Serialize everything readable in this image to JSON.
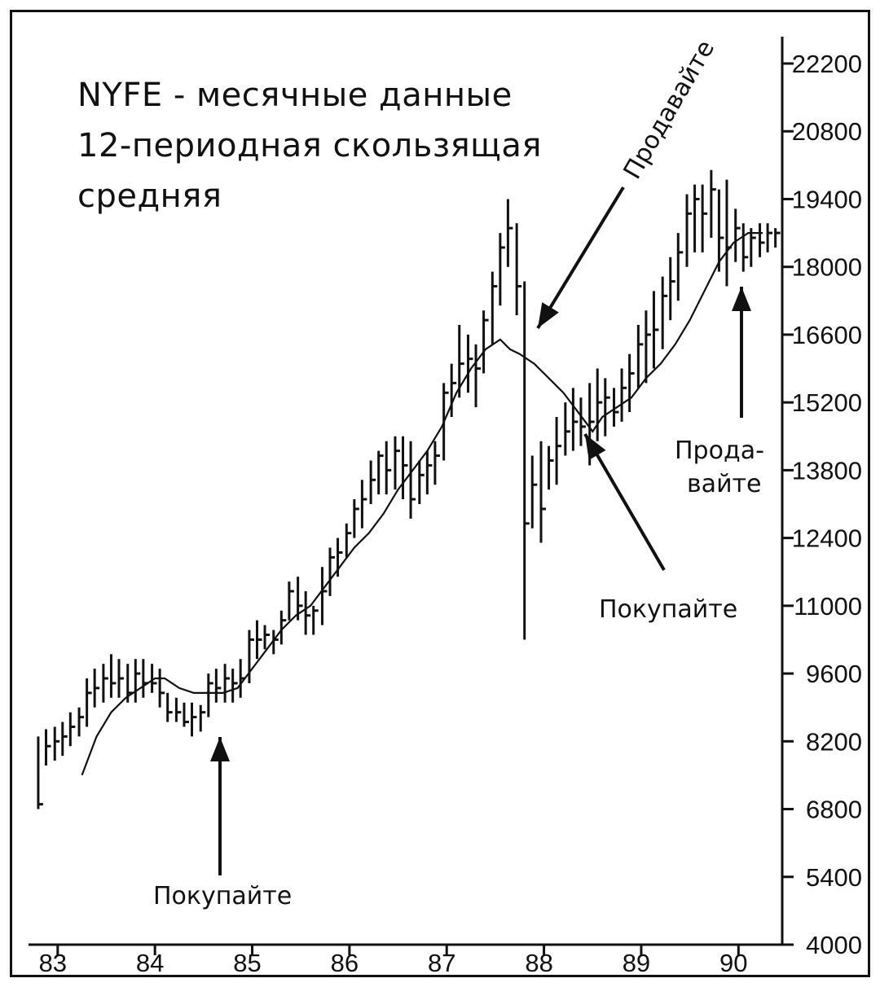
{
  "chart_data": {
    "type": "line",
    "title_lines": [
      "NYFE - месячные данные",
      "12-периодная скользящая",
      "средняя"
    ],
    "x_tick_labels": [
      "83",
      "84",
      "85",
      "86",
      "87",
      "88",
      "89",
      "90"
    ],
    "y_tick_labels": [
      "22200",
      "20800",
      "19400",
      "18000",
      "16600",
      "15200",
      "13800",
      "12400",
      "11000",
      "9600",
      "8200",
      "6800",
      "5400",
      "4000"
    ],
    "ylim": [
      4000,
      22200
    ],
    "xlim": [
      1982.7,
      1990.45
    ],
    "bars_note": "monthly price range bars",
    "series": [
      {
        "style": "bars",
        "x": [
          1982.8,
          1982.88,
          1982.97,
          1983.05,
          1983.13,
          1983.22,
          1983.3,
          1983.38,
          1983.47,
          1983.55,
          1983.63,
          1983.72,
          1983.8,
          1983.88,
          1983.97,
          1984.05,
          1984.13,
          1984.22,
          1984.3,
          1984.38,
          1984.47,
          1984.55,
          1984.63,
          1984.72,
          1984.8,
          1984.88,
          1984.97,
          1985.05,
          1985.13,
          1985.22,
          1985.3,
          1985.38,
          1985.47,
          1985.55,
          1985.63,
          1985.72,
          1985.8,
          1985.88,
          1985.97,
          1986.05,
          1986.13,
          1986.22,
          1986.3,
          1986.38,
          1986.47,
          1986.55,
          1986.63,
          1986.72,
          1986.8,
          1986.88,
          1986.97,
          1987.05,
          1987.13,
          1987.22,
          1987.3,
          1987.38,
          1987.47,
          1987.55,
          1987.63,
          1987.72,
          1987.8,
          1987.88,
          1987.97,
          1988.05,
          1988.13,
          1988.22,
          1988.3,
          1988.38,
          1988.47,
          1988.55,
          1988.63,
          1988.72,
          1988.8,
          1988.88,
          1988.97,
          1989.05,
          1989.13,
          1989.22,
          1989.3,
          1989.38,
          1989.47,
          1989.55,
          1989.63,
          1989.72,
          1989.8,
          1989.88,
          1989.97,
          1990.05,
          1990.13,
          1990.22,
          1990.3,
          1990.38
        ],
        "high": [
          8300,
          8450,
          8500,
          8600,
          8800,
          8900,
          9500,
          9700,
          9800,
          10000,
          9900,
          9800,
          9900,
          9900,
          9800,
          9700,
          9200,
          9100,
          9000,
          9000,
          8950,
          9600,
          9700,
          9800,
          9700,
          9900,
          10500,
          10700,
          10600,
          10500,
          10900,
          11500,
          11600,
          11300,
          11000,
          11800,
          12200,
          12400,
          12700,
          13200,
          13600,
          14000,
          14200,
          14400,
          14500,
          14500,
          14400,
          14000,
          14200,
          14400,
          15600,
          16000,
          16800,
          16600,
          16400,
          17100,
          17900,
          18700,
          19400,
          18900,
          17700,
          14100,
          14400,
          14300,
          14900,
          15200,
          15500,
          15300,
          15600,
          15900,
          15700,
          15500,
          15900,
          16200,
          16800,
          17100,
          17500,
          17800,
          18200,
          18700,
          19500,
          19700,
          19700,
          20000,
          19600,
          19800,
          19200,
          18900,
          18800,
          18900,
          18900,
          18800
        ],
        "low": [
          6800,
          7700,
          7800,
          7900,
          8100,
          8300,
          8500,
          8900,
          9000,
          9100,
          9100,
          9000,
          9000,
          9100,
          9200,
          8900,
          8600,
          8600,
          8500,
          8300,
          8400,
          8700,
          9000,
          9000,
          9000,
          9100,
          9400,
          9900,
          10100,
          10000,
          10200,
          10700,
          10700,
          10400,
          10400,
          10600,
          11200,
          11600,
          12000,
          12400,
          12600,
          13100,
          13300,
          13300,
          13400,
          13200,
          12800,
          13100,
          13300,
          13500,
          14000,
          14900,
          15300,
          15400,
          15100,
          15800,
          16400,
          17200,
          18000,
          17000,
          10300,
          12600,
          12300,
          13400,
          13500,
          14100,
          14200,
          14300,
          13900,
          14400,
          14500,
          14700,
          14800,
          15000,
          15500,
          15600,
          15900,
          16300,
          16900,
          17300,
          18000,
          18300,
          18300,
          18600,
          17900,
          17600,
          18100,
          17900,
          18000,
          18200,
          18300,
          18400
        ],
        "close": [
          6900,
          8100,
          8200,
          8300,
          8500,
          8700,
          9200,
          9300,
          9500,
          9400,
          9500,
          9200,
          9600,
          9400,
          9400,
          9200,
          8800,
          8800,
          8600,
          8700,
          8800,
          9400,
          9300,
          9500,
          9400,
          9500,
          10300,
          10300,
          10400,
          10300,
          10700,
          11300,
          11000,
          10800,
          10900,
          11300,
          12000,
          12100,
          12500,
          13000,
          13200,
          13600,
          14100,
          13800,
          14200,
          13900,
          13200,
          13700,
          13900,
          14100,
          15400,
          15600,
          16000,
          16100,
          15900,
          16900,
          17600,
          18400,
          18800,
          17600,
          12700,
          13500,
          13000,
          14000,
          14300,
          14600,
          14800,
          14700,
          14800,
          15200,
          15300,
          15000,
          15500,
          15800,
          16400,
          16600,
          16700,
          17400,
          17700,
          18300,
          19100,
          19400,
          19100,
          19600,
          18600,
          18400,
          18800,
          18200,
          18600,
          18500,
          18700,
          18700
        ]
      },
      {
        "style": "line",
        "x": [
          1983.25,
          1983.4,
          1983.55,
          1983.7,
          1983.85,
          1984.0,
          1984.1,
          1984.25,
          1984.4,
          1984.55,
          1984.7,
          1984.85,
          1985.0,
          1985.15,
          1985.3,
          1985.45,
          1985.6,
          1985.75,
          1985.9,
          1986.05,
          1986.2,
          1986.35,
          1986.5,
          1986.65,
          1986.8,
          1986.95,
          1987.1,
          1987.25,
          1987.4,
          1987.55,
          1987.65,
          1987.75,
          1987.9,
          1988.05,
          1988.2,
          1988.35,
          1988.5,
          1988.6,
          1988.75,
          1988.9,
          1989.05,
          1989.2,
          1989.35,
          1989.5,
          1989.65,
          1989.8,
          1989.95,
          1990.1,
          1990.25
        ],
        "values": [
          7500,
          8300,
          8800,
          9100,
          9300,
          9500,
          9500,
          9300,
          9200,
          9200,
          9200,
          9300,
          9700,
          10100,
          10500,
          10800,
          11000,
          11400,
          11800,
          12200,
          12500,
          12900,
          13400,
          13800,
          14200,
          14700,
          15400,
          15900,
          16300,
          16500,
          16300,
          16200,
          16000,
          15700,
          15400,
          15000,
          14600,
          14900,
          15100,
          15300,
          15700,
          16000,
          16400,
          16900,
          17500,
          18100,
          18500,
          18700,
          18700
        ]
      }
    ],
    "annotations": {
      "buy_1": "Покупайте",
      "buy_2": "Покупайте",
      "sell_1": "Продавайте",
      "sell_2_line1": "Прода-",
      "sell_2_line2": "вайте"
    }
  }
}
